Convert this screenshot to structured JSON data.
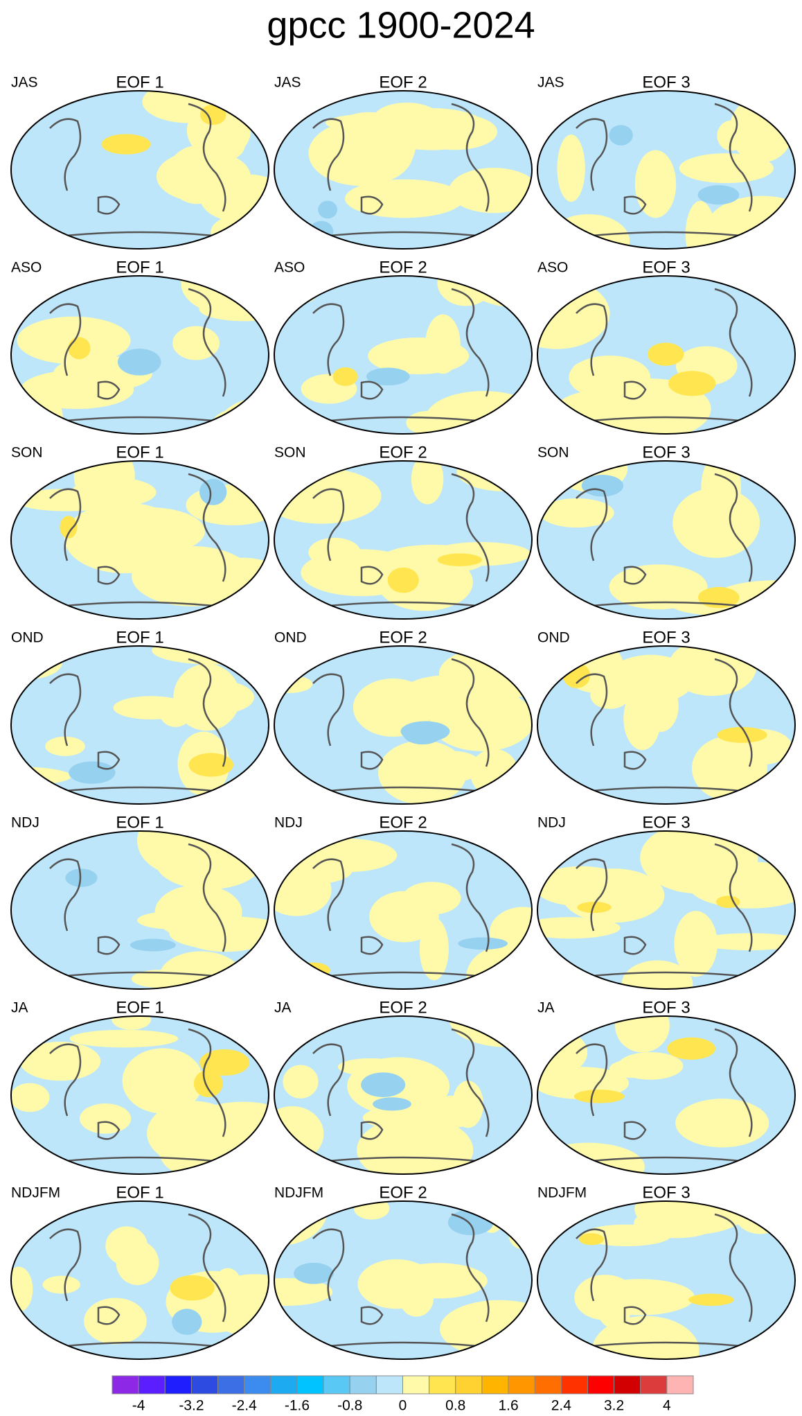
{
  "title": "gpcc 1900-2024",
  "panels": [
    {
      "season": "JAS",
      "label": "EOF 1"
    },
    {
      "season": "JAS",
      "label": "EOF 2"
    },
    {
      "season": "JAS",
      "label": "EOF 3"
    },
    {
      "season": "ASO",
      "label": "EOF 1"
    },
    {
      "season": "ASO",
      "label": "EOF 2"
    },
    {
      "season": "ASO",
      "label": "EOF 3"
    },
    {
      "season": "SON",
      "label": "EOF 1"
    },
    {
      "season": "SON",
      "label": "EOF 2"
    },
    {
      "season": "SON",
      "label": "EOF 3"
    },
    {
      "season": "OND",
      "label": "EOF 1"
    },
    {
      "season": "OND",
      "label": "EOF 2"
    },
    {
      "season": "OND",
      "label": "EOF 3"
    },
    {
      "season": "NDJ",
      "label": "EOF 1"
    },
    {
      "season": "NDJ",
      "label": "EOF 2"
    },
    {
      "season": "NDJ",
      "label": "EOF 3"
    },
    {
      "season": "JA",
      "label": "EOF 1"
    },
    {
      "season": "JA",
      "label": "EOF 2"
    },
    {
      "season": "JA",
      "label": "EOF 3"
    },
    {
      "season": "NDJFM",
      "label": "EOF 1"
    },
    {
      "season": "NDJFM",
      "label": "EOF 2"
    },
    {
      "season": "NDJFM",
      "label": "EOF 3"
    }
  ],
  "colorbar": {
    "colors": [
      "#8c28e6",
      "#5a1eff",
      "#1e1eff",
      "#2d4be1",
      "#3c6ee6",
      "#3c8cf0",
      "#1eaaf0",
      "#00c3ff",
      "#5ac8f5",
      "#96d2f0",
      "#bee6fa",
      "#fffaaa",
      "#ffe650",
      "#ffd232",
      "#ffb400",
      "#ff9600",
      "#ff6e00",
      "#ff3200",
      "#ff0000",
      "#d20000",
      "#dc3c3c",
      "#ffb4b4"
    ],
    "ticks": [
      -4,
      -3.2,
      -2.4,
      -1.6,
      -0.8,
      0,
      0.8,
      1.6,
      2.4,
      3.2,
      4
    ]
  }
}
